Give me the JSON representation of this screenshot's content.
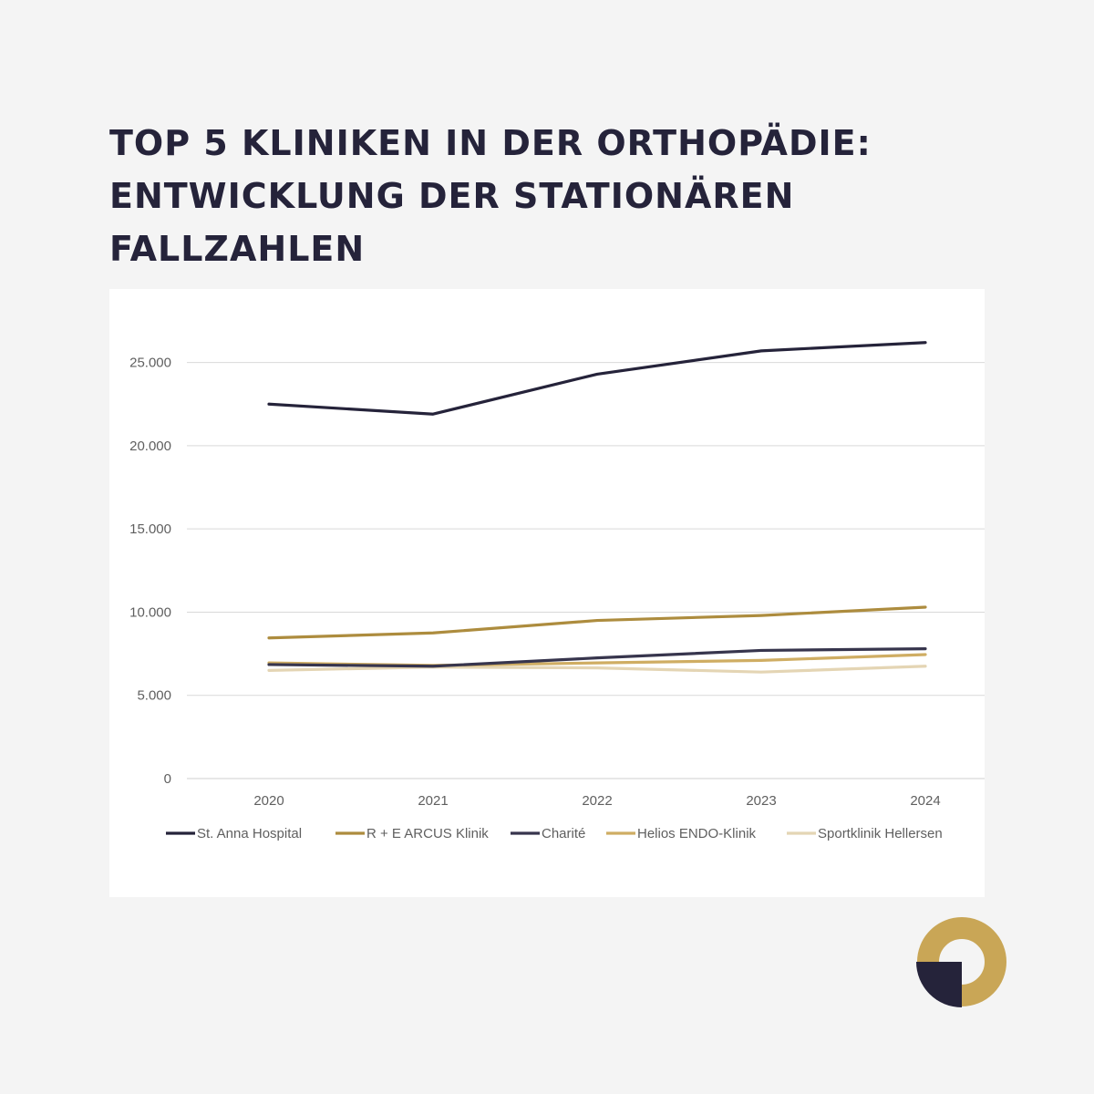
{
  "title": {
    "line1": "TOP 5 KLINIKEN IN DER ORTHOPÄDIE:",
    "line2": "ENTWICKLUNG DER STATIONÄREN",
    "line3": "FALLZAHLEN"
  },
  "colors": {
    "background": "#f4f4f4",
    "card": "#ffffff",
    "title": "#25233a",
    "grid": "#d9d9d9",
    "logo_gold": "#c9a656",
    "logo_navy": "#25233a"
  },
  "chart_data": {
    "type": "line",
    "title": "",
    "xlabel": "",
    "ylabel": "",
    "x": [
      "2020",
      "2021",
      "2022",
      "2023",
      "2024"
    ],
    "ylim": [
      0,
      27500
    ],
    "yticks": [
      0,
      5000,
      10000,
      15000,
      20000,
      25000
    ],
    "ytick_labels": [
      "0",
      "5.000",
      "10.000",
      "15.000",
      "20.000",
      "25.000"
    ],
    "grid": true,
    "legend_position": "bottom",
    "series": [
      {
        "name": "St. Anna Hospital",
        "color": "#25233a",
        "values": [
          22500,
          21900,
          24300,
          25700,
          26200
        ]
      },
      {
        "name": "R + E ARCUS Klinik",
        "color": "#ad8c3e",
        "values": [
          8450,
          8750,
          9500,
          9800,
          10300
        ]
      },
      {
        "name": "Charité",
        "color": "#37354d",
        "values": [
          6850,
          6750,
          7250,
          7700,
          7800
        ]
      },
      {
        "name": "Helios ENDO-Klinik",
        "color": "#cfad63",
        "values": [
          6950,
          6800,
          6950,
          7100,
          7450
        ]
      },
      {
        "name": "Sportklinik Hellersen",
        "color": "#e4d5b4",
        "values": [
          6500,
          6700,
          6650,
          6400,
          6750
        ]
      }
    ]
  }
}
